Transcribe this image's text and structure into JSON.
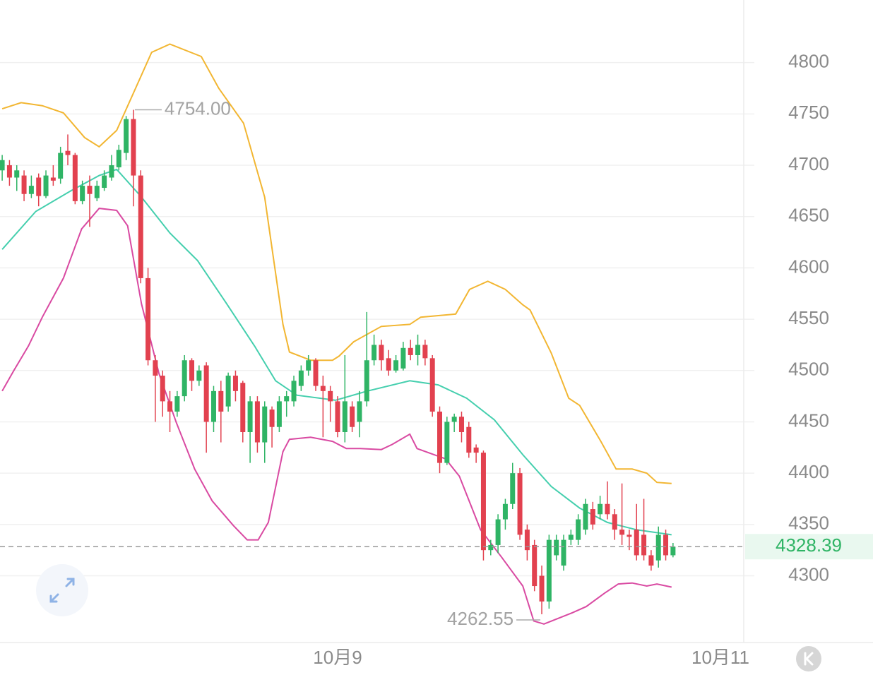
{
  "chart_data": {
    "type": "candlestick",
    "xlim": [
      -0.3,
      101.7
    ],
    "xticks": [
      {
        "value": 46,
        "label": "10月9"
      },
      {
        "value": 98.5,
        "label": "10月11"
      }
    ],
    "ylim": [
      4235,
      4861
    ],
    "yticks": [
      4300,
      4350,
      4400,
      4450,
      4500,
      4550,
      4600,
      4650,
      4700,
      4750,
      4800
    ],
    "grid": true,
    "up_color": "#2fb465",
    "down_color": "#e2414f",
    "candles": {
      "open": [
        4695,
        4700,
        4688,
        4690,
        4672,
        4688,
        4670,
        4688,
        4687,
        4714,
        4710,
        4665,
        4680,
        4668,
        4678,
        4688,
        4698,
        4712,
        4745,
        4690,
        4590,
        4510,
        4495,
        4470,
        4460,
        4475,
        4510,
        4490,
        4505,
        4450,
        4480,
        4465,
        4495,
        4488,
        4440,
        4470,
        4430,
        4462,
        4445,
        4470,
        4470,
        4485,
        4500,
        4510,
        4485,
        4480,
        4470,
        4440,
        4465,
        4450,
        4470,
        4510,
        4525,
        4512,
        4500,
        4502,
        4522,
        4515,
        4525,
        4512,
        4460,
        4410,
        4450,
        4455,
        4445,
        4425,
        4420,
        4325,
        4330,
        4355,
        4370,
        4400,
        4345,
        4330,
        4300,
        4275,
        4320,
        4310,
        4335,
        4335,
        4345,
        4365,
        4360,
        4370,
        4360,
        4345,
        4340,
        4345,
        4340,
        4320,
        4315,
        4340,
        4320
      ],
      "high": [
        4710,
        4705,
        4700,
        4695,
        4690,
        4692,
        4695,
        4700,
        4718,
        4730,
        4712,
        4685,
        4690,
        4685,
        4695,
        4710,
        4720,
        4748,
        4754,
        4695,
        4600,
        4515,
        4500,
        4480,
        4480,
        4515,
        4512,
        4505,
        4508,
        4485,
        4490,
        4498,
        4500,
        4490,
        4475,
        4475,
        4470,
        4465,
        4475,
        4480,
        4495,
        4505,
        4515,
        4512,
        4495,
        4485,
        4475,
        4515,
        4470,
        4480,
        4557,
        4535,
        4530,
        4520,
        4515,
        4528,
        4530,
        4535,
        4530,
        4515,
        4465,
        4455,
        4458,
        4460,
        4450,
        4428,
        4422,
        4335,
        4360,
        4375,
        4410,
        4405,
        4350,
        4335,
        4310,
        4340,
        4340,
        4340,
        4345,
        4360,
        4375,
        4372,
        4378,
        4392,
        4365,
        4390,
        4345,
        4370,
        4375,
        4325,
        4348,
        4345,
        4332
      ],
      "low": [
        4685,
        4680,
        4675,
        4665,
        4668,
        4660,
        4668,
        4680,
        4682,
        4700,
        4662,
        4662,
        4640,
        4665,
        4675,
        4685,
        4695,
        4705,
        4660,
        4585,
        4505,
        4450,
        4455,
        4440,
        4455,
        4470,
        4480,
        4485,
        4420,
        4440,
        4430,
        4460,
        4470,
        4430,
        4410,
        4420,
        4410,
        4425,
        4440,
        4455,
        4465,
        4480,
        4495,
        4480,
        4435,
        4450,
        4435,
        4430,
        4440,
        4435,
        4465,
        4505,
        4500,
        4495,
        4498,
        4500,
        4510,
        4505,
        4505,
        4455,
        4400,
        4408,
        4440,
        4430,
        4415,
        4410,
        4315,
        4320,
        4322,
        4345,
        4365,
        4335,
        4315,
        4285,
        4262.55,
        4268,
        4315,
        4305,
        4330,
        4330,
        4340,
        4345,
        4355,
        4355,
        4335,
        4330,
        4325,
        4315,
        4315,
        4305,
        4308,
        4315,
        4318
      ],
      "close": [
        4705,
        4688,
        4695,
        4672,
        4680,
        4670,
        4690,
        4685,
        4712,
        4710,
        4665,
        4680,
        4672,
        4680,
        4690,
        4700,
        4715,
        4745,
        4690,
        4590,
        4510,
        4495,
        4470,
        4460,
        4475,
        4510,
        4490,
        4500,
        4450,
        4480,
        4460,
        4495,
        4480,
        4440,
        4470,
        4430,
        4465,
        4445,
        4470,
        4475,
        4490,
        4500,
        4510,
        4485,
        4480,
        4470,
        4440,
        4470,
        4445,
        4470,
        4510,
        4525,
        4510,
        4500,
        4510,
        4522,
        4515,
        4525,
        4512,
        4460,
        4410,
        4450,
        4455,
        4440,
        4420,
        4420,
        4325,
        4330,
        4355,
        4370,
        4400,
        4340,
        4325,
        4290,
        4275,
        4335,
        4335,
        4335,
        4340,
        4355,
        4370,
        4350,
        4370,
        4360,
        4345,
        4340,
        4338,
        4320,
        4320,
        4310,
        4340,
        4320,
        4328.39
      ]
    },
    "series": [
      {
        "color": "#f2b632",
        "x": [
          0,
          2.6,
          5.5,
          8.4,
          11.3,
          13.3,
          15.7,
          18.1,
          20.5,
          23.0,
          27.3,
          29.7,
          33.1,
          36.0,
          38.5,
          39.4,
          42.3,
          45.3,
          46.2,
          48.2,
          52.0,
          55.9,
          57.4,
          62.2,
          64.1,
          66.6,
          69.0,
          71.4,
          72.4,
          75.3,
          77.7,
          79.2,
          82.1,
          84.2,
          86.4,
          88.4,
          89.8,
          91.8
        ],
        "values": [
          4755,
          4761,
          4758,
          4751,
          4727,
          4718,
          4734,
          4772,
          4810,
          4818,
          4806,
          4775,
          4741,
          4669,
          4545,
          4518,
          4510,
          4510,
          4514,
          4528,
          4543,
          4545,
          4552,
          4555,
          4579,
          4587,
          4579,
          4564,
          4559,
          4517,
          4473,
          4466,
          4431,
          4404,
          4404,
          4400,
          4391,
          4390
        ]
      },
      {
        "color": "#45cfae",
        "x": [
          0,
          4.6,
          9.4,
          13.3,
          15.7,
          19.1,
          23.0,
          26.8,
          30.7,
          34.6,
          37.5,
          40.4,
          45.7,
          50.1,
          55.9,
          59.8,
          63.7,
          67.5,
          71.4,
          75.3,
          79.2,
          83.0,
          86.9,
          91.8
        ],
        "values": [
          4618,
          4655,
          4675,
          4690,
          4696,
          4669,
          4634,
          4607,
          4566,
          4524,
          4490,
          4476,
          4471,
          4480,
          4490,
          4486,
          4473,
          4452,
          4418,
          4387,
          4366,
          4352,
          4345,
          4340
        ]
      },
      {
        "color": "#d94aa2",
        "x": [
          0,
          1.6,
          3.6,
          5.5,
          8.4,
          10.9,
          13.3,
          15.7,
          17.2,
          19.1,
          21.5,
          23.9,
          26.4,
          28.8,
          31.7,
          33.6,
          35.1,
          36.5,
          38.5,
          39.4,
          42.3,
          45.3,
          47.2,
          49.1,
          52.0,
          53.5,
          55.9,
          56.9,
          60.8,
          62.7,
          65.6,
          68.5,
          71.4,
          72.9,
          74.3,
          78.2,
          80.1,
          82.6,
          84.5,
          86.4,
          88.4,
          89.8,
          91.8
        ],
        "values": [
          4480,
          4500,
          4524,
          4552,
          4590,
          4638,
          4658,
          4656,
          4641,
          4565,
          4497,
          4449,
          4404,
          4373,
          4349,
          4335,
          4335,
          4352,
          4421,
          4433,
          4435,
          4431,
          4424,
          4424,
          4423,
          4428,
          4438,
          4424,
          4414,
          4397,
          4345,
          4318,
          4290,
          4256,
          4253,
          4264,
          4270,
          4283,
          4292,
          4293,
          4290,
          4292,
          4289
        ]
      }
    ],
    "high_label": {
      "value": 4754,
      "label": "4754.00"
    },
    "low_label": {
      "value": 4262.55,
      "label": "4262.55"
    },
    "last_price": {
      "value": 4328.39,
      "label": "4328.39"
    }
  }
}
